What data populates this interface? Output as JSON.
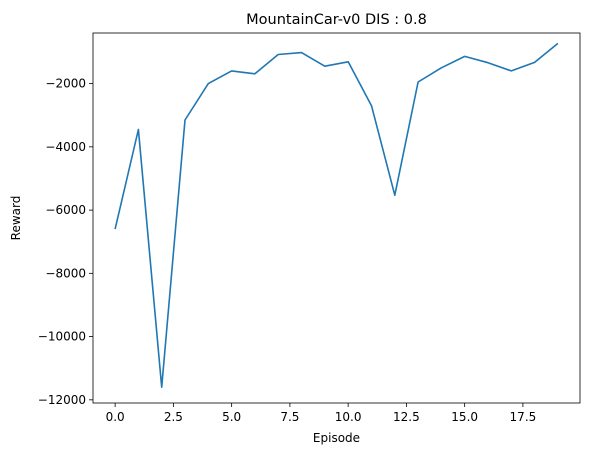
{
  "chart_data": {
    "type": "line",
    "title": "MountainCar-v0 DIS : 0.8",
    "xlabel": "Episode",
    "ylabel": "Reward",
    "xlim": [
      -0.95,
      19.95
    ],
    "ylim": [
      -12100,
      -400
    ],
    "xticks": [
      0,
      2.5,
      5,
      7.5,
      10,
      12.5,
      15,
      17.5
    ],
    "xtick_labels": [
      "0.0",
      "2.5",
      "5.0",
      "7.5",
      "10.0",
      "12.5",
      "15.0",
      "17.5"
    ],
    "yticks": [
      -12000,
      -10000,
      -8000,
      -6000,
      -4000,
      -2000
    ],
    "ytick_labels": [
      "−12000",
      "−10000",
      "−8000",
      "−6000",
      "−4000",
      "−2000"
    ],
    "grid": false,
    "series": [
      {
        "color": "#1f77b4",
        "x": [
          0,
          1,
          2,
          3,
          4,
          5,
          6,
          7,
          8,
          9,
          10,
          11,
          12,
          13,
          14,
          15,
          16,
          17,
          18,
          19
        ],
        "values": [
          -6600,
          -3450,
          -11600,
          -3150,
          -2000,
          -1600,
          -1690,
          -1080,
          -1020,
          -1450,
          -1310,
          -2700,
          -5530,
          -1950,
          -1500,
          -1140,
          -1340,
          -1600,
          -1330,
          -730
        ]
      }
    ]
  }
}
